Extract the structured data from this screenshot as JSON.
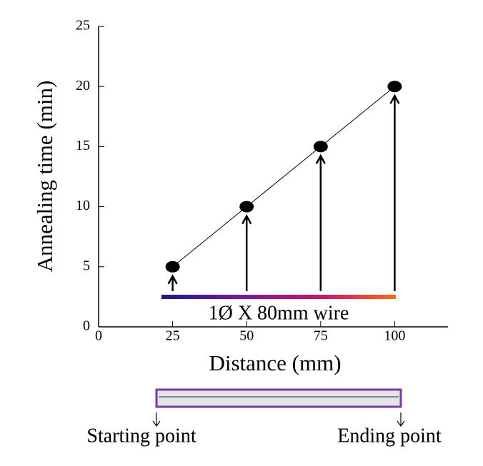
{
  "chart_data": {
    "type": "line",
    "x_label": "Distance (mm)",
    "y_label": "Annealing time (min)",
    "x": [
      25,
      50,
      75,
      100
    ],
    "series": [
      {
        "values": [
          5,
          10,
          15,
          20
        ],
        "color": "#000000"
      }
    ],
    "xlim": [
      0,
      118
    ],
    "xticks": [
      0,
      25,
      50,
      75,
      100
    ],
    "ylim": [
      0,
      25
    ],
    "yticks": [
      0,
      5,
      10,
      15,
      20,
      25
    ],
    "annotations": {
      "wire": "1Ø X 80mm wire",
      "start": "Starting point",
      "end": "Ending point"
    }
  }
}
